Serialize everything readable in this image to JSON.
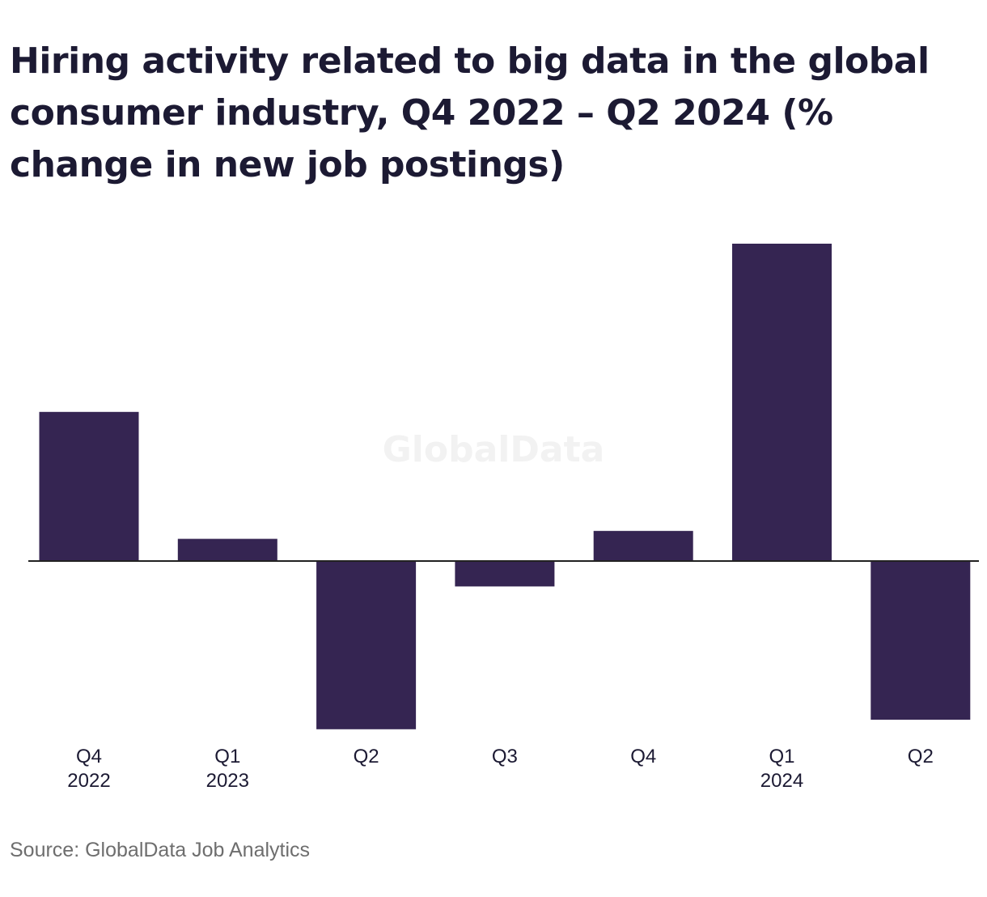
{
  "title": "Hiring activity related to big data in the global consumer industry, Q4 2022 – Q2 2024 (% change in new job postings)",
  "source": "Source: GlobalData Job Analytics",
  "watermark": "GlobalData",
  "colors": {
    "bar": "#352552",
    "axis": "#222222",
    "text": "#1c1a33",
    "source": "#6e6e6e",
    "watermark": "#f2f2f2"
  },
  "chart_data": {
    "type": "bar",
    "title": "Hiring activity related to big data in the global consumer industry, Q4 2022 – Q2 2024 (% change in new job postings)",
    "xlabel": "",
    "ylabel": "",
    "grid": false,
    "legend": "none",
    "categories": [
      [
        "Q4",
        "2022"
      ],
      [
        "Q1",
        "2023"
      ],
      [
        "Q2",
        ""
      ],
      [
        "Q3",
        ""
      ],
      [
        "Q4",
        ""
      ],
      [
        "Q1",
        "2024"
      ],
      [
        "Q2",
        ""
      ]
    ],
    "values": [
      47,
      7,
      -53,
      -8,
      9.5,
      100,
      -50
    ],
    "ylim": [
      -60,
      110
    ]
  }
}
